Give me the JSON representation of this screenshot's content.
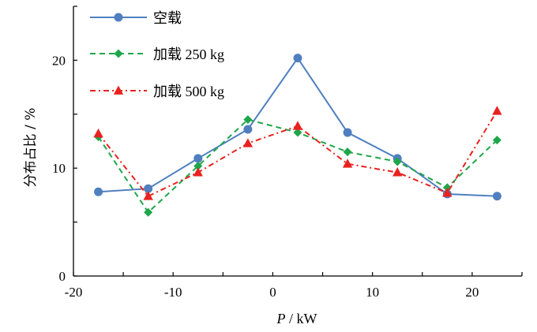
{
  "chart_data": {
    "type": "line",
    "title": "",
    "xlabel_italic": "P",
    "xlabel_rest": " / kW",
    "xlabel": "P / kW",
    "ylabel": "分布占比 / %",
    "xlim": [
      -20,
      25
    ],
    "ylim": [
      0,
      25
    ],
    "grid": false,
    "legend_position": "top-left",
    "x_ticks": [
      -20,
      -15,
      -10,
      -5,
      0,
      5,
      10,
      15,
      20,
      25
    ],
    "x_tick_labels": [
      {
        "value": -20,
        "label": "-20"
      },
      {
        "value": -10,
        "label": "-10"
      },
      {
        "value": 0,
        "label": "0"
      },
      {
        "value": 10,
        "label": "10"
      },
      {
        "value": 20,
        "label": "20"
      }
    ],
    "y_ticks": [
      0,
      5,
      10,
      15,
      20,
      25
    ],
    "y_tick_labels": [
      {
        "value": 0,
        "label": "0"
      },
      {
        "value": 10,
        "label": "10"
      },
      {
        "value": 20,
        "label": "20"
      }
    ],
    "x": [
      -17.5,
      -12.5,
      -7.5,
      -2.5,
      2.5,
      7.5,
      12.5,
      17.5,
      22.5
    ],
    "series": [
      {
        "name": "空载",
        "color": "#4f7fbf",
        "line_style": "solid",
        "marker": "circle",
        "values": [
          7.8,
          8.1,
          10.9,
          13.6,
          20.2,
          13.3,
          10.9,
          7.6,
          7.4
        ]
      },
      {
        "name": "加载 250 kg",
        "color": "#1ea64a",
        "line_style": "dashed",
        "marker": "diamond",
        "values": [
          12.9,
          5.9,
          10.2,
          14.5,
          13.3,
          11.5,
          10.6,
          8.2,
          12.6
        ]
      },
      {
        "name": "加载 500 kg",
        "color": "#e8221f",
        "line_style": "dash-dot",
        "marker": "triangle",
        "values": [
          13.2,
          7.4,
          9.6,
          12.3,
          13.9,
          10.4,
          9.6,
          7.7,
          15.3
        ]
      }
    ]
  }
}
